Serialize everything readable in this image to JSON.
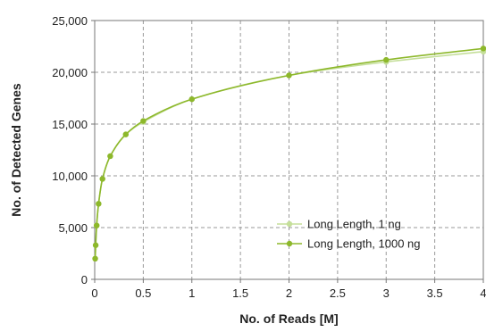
{
  "chart_data": {
    "type": "line",
    "xlabel": "No. of Reads [M]",
    "ylabel": "No. of Detected Genes",
    "xlim": [
      0,
      4
    ],
    "ylim": [
      0,
      25000
    ],
    "x_ticks": [
      0,
      0.5,
      1,
      1.5,
      2,
      2.5,
      3,
      3.5,
      4
    ],
    "x_tick_labels": [
      "0",
      "0.5",
      "1",
      "1.5",
      "2",
      "2.5",
      "3",
      "3.5",
      "4"
    ],
    "y_ticks": [
      0,
      5000,
      10000,
      15000,
      20000,
      25000
    ],
    "y_tick_labels": [
      "0",
      "5,000",
      "10,000",
      "15,000",
      "20,000",
      "25,000"
    ],
    "grid": true,
    "legend_position": "bottom-right",
    "series": [
      {
        "name": "Long Length, 1 ng",
        "color": "#c5df9a",
        "x": [
          0.005,
          0.01,
          0.02,
          0.04,
          0.08,
          0.16,
          0.32,
          0.5,
          1,
          2,
          3,
          4
        ],
        "y": [
          2000,
          3300,
          5200,
          7300,
          9700,
          11900,
          14000,
          15200,
          17400,
          19700,
          21000,
          22000
        ]
      },
      {
        "name": "Long Length, 1000 ng",
        "color": "#8db82b",
        "x": [
          0.005,
          0.01,
          0.02,
          0.04,
          0.08,
          0.16,
          0.32,
          0.5,
          1,
          2,
          3,
          4
        ],
        "y": [
          2000,
          3300,
          5200,
          7300,
          9700,
          11900,
          14000,
          15300,
          17400,
          19700,
          21200,
          22300
        ]
      }
    ]
  }
}
